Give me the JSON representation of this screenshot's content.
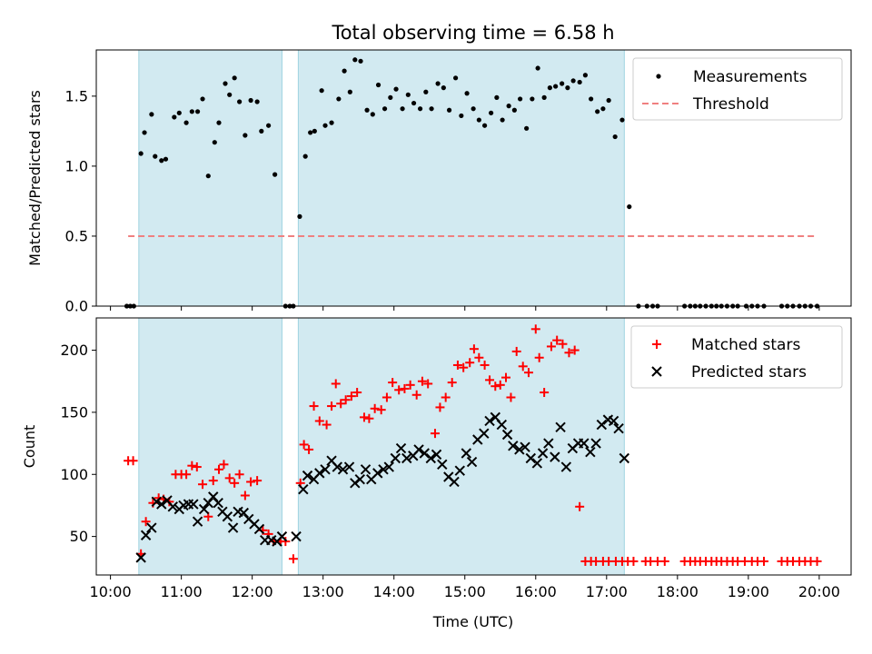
{
  "figure": {
    "title": "Total observing time = 6.58 h",
    "xlabel": "Time (UTC)"
  },
  "chart_data": [
    {
      "type": "scatter",
      "ylabel": "Matched/Predicted stars",
      "ylim": [
        0,
        1.83
      ],
      "yticks": [
        0.0,
        0.5,
        1.0,
        1.5
      ],
      "ytick_labels": [
        "0.0",
        "0.5",
        "1.0",
        "1.5"
      ],
      "xlim": [
        9.8,
        20.45
      ],
      "xticks": [
        10,
        11,
        12,
        13,
        14,
        15,
        16,
        17,
        18,
        19,
        20
      ],
      "xtick_labels": [
        "10:00",
        "11:00",
        "12:00",
        "13:00",
        "14:00",
        "15:00",
        "16:00",
        "17:00",
        "18:00",
        "19:00",
        "20:00"
      ],
      "show_xtick_labels": false,
      "observing_windows": [
        [
          10.4,
          12.42
        ],
        [
          12.65,
          17.25
        ]
      ],
      "window_color": "#add8e6",
      "threshold": {
        "name": "Threshold",
        "value": 0.5,
        "x_range": [
          10.25,
          19.97
        ],
        "color": "#f08080"
      },
      "legend": {
        "placement": "top-right",
        "entries": [
          "Measurements",
          "Threshold"
        ]
      },
      "series": [
        {
          "name": "Measurements",
          "marker": "dot",
          "color": "#000000",
          "x": [
            10.23,
            10.28,
            10.33,
            10.43,
            10.48,
            10.58,
            10.63,
            10.72,
            10.78,
            10.9,
            10.97,
            11.07,
            11.15,
            11.23,
            11.3,
            11.38,
            11.47,
            11.53,
            11.62,
            11.68,
            11.75,
            11.82,
            11.9,
            11.98,
            12.07,
            12.13,
            12.23,
            12.32,
            12.47,
            12.53,
            12.58,
            12.67,
            12.75,
            12.82,
            12.88,
            12.98,
            13.03,
            13.12,
            13.22,
            13.3,
            13.38,
            13.45,
            13.53,
            13.62,
            13.7,
            13.78,
            13.87,
            13.95,
            14.03,
            14.12,
            14.2,
            14.28,
            14.37,
            14.45,
            14.53,
            14.62,
            14.7,
            14.78,
            14.87,
            14.95,
            15.03,
            15.12,
            15.2,
            15.28,
            15.37,
            15.45,
            15.53,
            15.62,
            15.7,
            15.78,
            15.87,
            15.95,
            16.03,
            16.12,
            16.2,
            16.28,
            16.37,
            16.45,
            16.53,
            16.62,
            16.7,
            16.78,
            16.87,
            16.95,
            17.03,
            17.12,
            17.22,
            17.32,
            17.45,
            17.57,
            17.65,
            17.72,
            18.1,
            18.18,
            18.25,
            18.32,
            18.4,
            18.48,
            18.55,
            18.62,
            18.7,
            18.78,
            18.85,
            18.97,
            19.05,
            19.13,
            19.22,
            19.47,
            19.55,
            19.63,
            19.72,
            19.8,
            19.88,
            19.97
          ],
          "y": [
            0.0,
            0.0,
            0.0,
            1.09,
            1.24,
            1.37,
            1.07,
            1.04,
            1.05,
            1.35,
            1.38,
            1.31,
            1.39,
            1.39,
            1.48,
            0.93,
            1.17,
            1.31,
            1.59,
            1.51,
            1.63,
            1.46,
            1.22,
            1.47,
            1.46,
            1.25,
            1.29,
            0.94,
            0.0,
            0.0,
            0.0,
            0.64,
            1.07,
            1.24,
            1.25,
            1.54,
            1.29,
            1.31,
            1.48,
            1.68,
            1.53,
            1.76,
            1.75,
            1.4,
            1.37,
            1.58,
            1.41,
            1.49,
            1.55,
            1.41,
            1.51,
            1.45,
            1.41,
            1.53,
            1.41,
            1.59,
            1.56,
            1.4,
            1.63,
            1.36,
            1.52,
            1.41,
            1.33,
            1.29,
            1.38,
            1.49,
            1.33,
            1.43,
            1.4,
            1.48,
            1.27,
            1.48,
            1.7,
            1.49,
            1.56,
            1.57,
            1.59,
            1.56,
            1.61,
            1.6,
            1.65,
            1.48,
            1.39,
            1.41,
            1.47,
            1.21,
            1.33,
            0.71,
            0.0,
            0.0,
            0.0,
            0.0,
            0.0,
            0.0,
            0.0,
            0.0,
            0.0,
            0.0,
            0.0,
            0.0,
            0.0,
            0.0,
            0.0,
            0.0,
            0.0,
            0.0,
            0.0,
            0.0,
            0.0,
            0.0,
            0.0,
            0.0,
            0.0,
            0.0
          ]
        }
      ]
    },
    {
      "type": "scatter",
      "ylabel": "Count",
      "ylim": [
        19,
        226
      ],
      "yticks": [
        50,
        100,
        150,
        200
      ],
      "ytick_labels": [
        "50",
        "100",
        "150",
        "200"
      ],
      "xlim": [
        9.8,
        20.45
      ],
      "xticks": [
        10,
        11,
        12,
        13,
        14,
        15,
        16,
        17,
        18,
        19,
        20
      ],
      "xtick_labels": [
        "10:00",
        "11:00",
        "12:00",
        "13:00",
        "14:00",
        "15:00",
        "16:00",
        "17:00",
        "18:00",
        "19:00",
        "20:00"
      ],
      "show_xtick_labels": true,
      "observing_windows": [
        [
          10.4,
          12.42
        ],
        [
          12.65,
          17.25
        ]
      ],
      "window_color": "#add8e6",
      "legend": {
        "placement": "top-right",
        "entries": [
          "Matched stars",
          "Predicted stars"
        ]
      },
      "series": [
        {
          "name": "Matched stars",
          "marker": "plus",
          "color": "#ff0000",
          "x": [
            10.25,
            10.32,
            10.43,
            10.5,
            10.6,
            10.68,
            10.75,
            10.83,
            10.92,
            11.0,
            11.07,
            11.15,
            11.22,
            11.3,
            11.38,
            11.45,
            11.53,
            11.6,
            11.68,
            11.75,
            11.82,
            11.9,
            11.98,
            12.07,
            12.15,
            12.23,
            12.3,
            12.4,
            12.47,
            12.58,
            12.68,
            12.73,
            12.8,
            12.87,
            12.95,
            13.05,
            13.12,
            13.18,
            13.25,
            13.32,
            13.4,
            13.48,
            13.58,
            13.65,
            13.73,
            13.82,
            13.9,
            13.98,
            14.07,
            14.15,
            14.23,
            14.32,
            14.4,
            14.48,
            14.58,
            14.65,
            14.73,
            14.82,
            14.9,
            14.98,
            15.07,
            15.13,
            15.2,
            15.28,
            15.35,
            15.43,
            15.5,
            15.58,
            15.65,
            15.73,
            15.82,
            15.9,
            16.0,
            16.05,
            16.12,
            16.22,
            16.3,
            16.38,
            16.47,
            16.55,
            16.62,
            16.7,
            16.78,
            16.85,
            16.95,
            17.03,
            17.13,
            17.22,
            17.3,
            17.38,
            17.55,
            17.62,
            17.72,
            17.82,
            18.1,
            18.18,
            18.25,
            18.32,
            18.4,
            18.48,
            18.55,
            18.62,
            18.7,
            18.78,
            18.85,
            18.95,
            19.05,
            19.13,
            19.22,
            19.47,
            19.55,
            19.63,
            19.72,
            19.8,
            19.88,
            19.97
          ],
          "y": [
            111,
            111,
            36,
            62,
            77,
            81,
            80,
            78,
            100,
            100,
            100,
            107,
            106,
            92,
            66,
            95,
            104,
            108,
            97,
            93,
            100,
            83,
            94,
            95,
            55,
            52,
            46,
            46,
            46,
            32,
            93,
            124,
            120,
            155,
            143,
            140,
            155,
            173,
            157,
            160,
            163,
            166,
            146,
            145,
            153,
            152,
            162,
            174,
            168,
            169,
            172,
            164,
            175,
            173,
            133,
            154,
            162,
            174,
            188,
            186,
            190,
            201,
            194,
            188,
            176,
            171,
            172,
            178,
            162,
            199,
            187,
            182,
            217,
            194,
            166,
            203,
            208,
            205,
            198,
            200,
            74,
            30,
            30,
            30,
            30,
            30,
            30,
            30,
            30,
            30,
            30,
            30,
            30,
            30,
            30,
            30,
            30,
            30,
            30,
            30,
            30,
            30,
            30,
            30,
            30,
            30,
            30,
            30,
            30,
            30,
            30,
            30,
            30,
            30,
            30,
            30
          ],
          "note_x_override": true
        },
        {
          "name": "Predicted stars",
          "marker": "x",
          "color": "#000000",
          "x": [
            10.43,
            10.5,
            10.58,
            10.65,
            10.72,
            10.8,
            10.88,
            10.97,
            11.03,
            11.1,
            11.17,
            11.23,
            11.32,
            11.38,
            11.45,
            11.52,
            11.58,
            11.65,
            11.73,
            11.8,
            11.88,
            11.95,
            12.03,
            12.1,
            12.18,
            12.27,
            12.35,
            12.42,
            12.62,
            12.72,
            12.78,
            12.87,
            12.95,
            13.03,
            13.12,
            13.2,
            13.28,
            13.37,
            13.45,
            13.52,
            13.6,
            13.68,
            13.77,
            13.85,
            13.93,
            14.02,
            14.1,
            14.18,
            14.27,
            14.35,
            14.43,
            14.52,
            14.6,
            14.68,
            14.77,
            14.85,
            14.93,
            15.02,
            15.1,
            15.18,
            15.27,
            15.35,
            15.43,
            15.52,
            15.6,
            15.68,
            15.77,
            15.85,
            15.93,
            16.02,
            16.1,
            16.18,
            16.27,
            16.35,
            16.43,
            16.52,
            16.6,
            16.68,
            16.77,
            16.85,
            16.93,
            17.02,
            17.1,
            17.17,
            17.25
          ],
          "y": [
            33,
            51,
            57,
            78,
            76,
            79,
            74,
            72,
            75,
            76,
            76,
            62,
            72,
            77,
            82,
            77,
            70,
            66,
            57,
            70,
            69,
            64,
            60,
            56,
            47,
            47,
            46,
            50,
            50,
            88,
            99,
            96,
            101,
            104,
            111,
            106,
            104,
            106,
            93,
            96,
            104,
            96,
            101,
            104,
            106,
            113,
            121,
            113,
            115,
            120,
            117,
            113,
            116,
            108,
            98,
            94,
            103,
            117,
            110,
            128,
            133,
            143,
            146,
            140,
            132,
            123,
            120,
            122,
            113,
            109,
            117,
            125,
            114,
            138,
            106,
            121,
            125,
            125,
            118,
            125,
            140,
            144,
            143,
            137,
            113
          ]
        }
      ]
    }
  ]
}
